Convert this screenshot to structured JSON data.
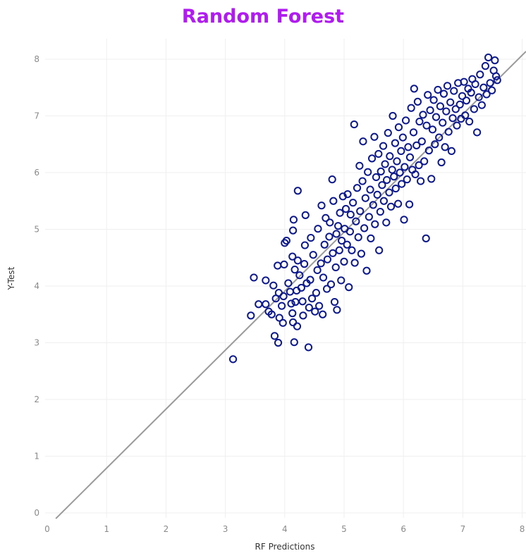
{
  "colors": {
    "title": "#b01cf0",
    "marker": "#0e1a8c",
    "fit_line": "#9a9a9a",
    "grid": "#efefef"
  },
  "chart_data": {
    "type": "scatter",
    "title": "Random Forest",
    "xlabel": "RF Predictions",
    "ylabel": "Y-Test",
    "xlim": [
      0,
      8
    ],
    "ylim": [
      -0.1,
      8.4
    ],
    "xticks": [
      "0",
      "1",
      "2",
      "3",
      "4",
      "5",
      "6",
      "7",
      "8"
    ],
    "yticks": [
      "0",
      "1",
      "2",
      "3",
      "4",
      "5",
      "6",
      "7",
      "8"
    ],
    "grid": true,
    "marker": "hollow-circle",
    "fit_line": {
      "slope": 1.04,
      "intercept": -0.25
    },
    "points": [
      [
        3.13,
        2.71
      ],
      [
        3.43,
        3.48
      ],
      [
        3.48,
        4.15
      ],
      [
        3.56,
        3.68
      ],
      [
        3.68,
        3.68
      ],
      [
        3.68,
        4.1
      ],
      [
        3.73,
        3.55
      ],
      [
        3.78,
        3.5
      ],
      [
        3.81,
        4.01
      ],
      [
        3.83,
        3.12
      ],
      [
        3.85,
        3.78
      ],
      [
        3.88,
        4.36
      ],
      [
        3.89,
        3.0
      ],
      [
        3.9,
        3.88
      ],
      [
        3.91,
        3.44
      ],
      [
        3.95,
        3.65
      ],
      [
        3.97,
        3.35
      ],
      [
        3.98,
        3.82
      ],
      [
        3.99,
        4.38
      ],
      [
        4.0,
        4.76
      ],
      [
        4.03,
        4.8
      ],
      [
        4.06,
        4.05
      ],
      [
        4.09,
        3.9
      ],
      [
        4.11,
        3.69
      ],
      [
        4.13,
        3.52
      ],
      [
        4.13,
        4.52
      ],
      [
        4.14,
        3.36
      ],
      [
        4.14,
        4.98
      ],
      [
        4.15,
        5.17
      ],
      [
        4.16,
        3.01
      ],
      [
        4.17,
        4.29
      ],
      [
        4.18,
        3.72
      ],
      [
        4.2,
        3.92
      ],
      [
        4.21,
        3.29
      ],
      [
        4.22,
        4.45
      ],
      [
        4.22,
        5.68
      ],
      [
        4.25,
        4.19
      ],
      [
        4.28,
        3.97
      ],
      [
        4.3,
        3.73
      ],
      [
        4.31,
        3.48
      ],
      [
        4.33,
        4.39
      ],
      [
        4.34,
        4.72
      ],
      [
        4.35,
        5.25
      ],
      [
        4.37,
        4.05
      ],
      [
        4.4,
        2.92
      ],
      [
        4.41,
        3.62
      ],
      [
        4.43,
        4.11
      ],
      [
        4.44,
        4.85
      ],
      [
        4.46,
        3.78
      ],
      [
        4.48,
        4.55
      ],
      [
        4.51,
        3.55
      ],
      [
        4.53,
        3.88
      ],
      [
        4.55,
        4.28
      ],
      [
        4.56,
        5.01
      ],
      [
        4.58,
        3.65
      ],
      [
        4.61,
        4.4
      ],
      [
        4.62,
        5.42
      ],
      [
        4.64,
        3.5
      ],
      [
        4.65,
        4.15
      ],
      [
        4.67,
        4.73
      ],
      [
        4.69,
        5.2
      ],
      [
        4.71,
        3.95
      ],
      [
        4.72,
        4.47
      ],
      [
        4.75,
        4.87
      ],
      [
        4.76,
        5.12
      ],
      [
        4.78,
        4.03
      ],
      [
        4.8,
        5.88
      ],
      [
        4.81,
        4.58
      ],
      [
        4.82,
        5.5
      ],
      [
        4.84,
        3.72
      ],
      [
        4.86,
        4.33
      ],
      [
        4.87,
        4.92
      ],
      [
        4.88,
        3.58
      ],
      [
        4.9,
        5.06
      ],
      [
        4.92,
        4.63
      ],
      [
        4.93,
        5.29
      ],
      [
        4.95,
        4.1
      ],
      [
        4.96,
        4.8
      ],
      [
        4.98,
        5.58
      ],
      [
        5.0,
        4.43
      ],
      [
        5.01,
        5.01
      ],
      [
        5.03,
        5.36
      ],
      [
        5.05,
        4.73
      ],
      [
        5.06,
        5.62
      ],
      [
        5.08,
        3.98
      ],
      [
        5.1,
        4.96
      ],
      [
        5.11,
        5.26
      ],
      [
        5.13,
        4.63
      ],
      [
        5.15,
        5.47
      ],
      [
        5.17,
        6.85
      ],
      [
        5.18,
        4.41
      ],
      [
        5.2,
        5.14
      ],
      [
        5.22,
        5.73
      ],
      [
        5.24,
        4.86
      ],
      [
        5.26,
        6.12
      ],
      [
        5.27,
        5.32
      ],
      [
        5.29,
        4.57
      ],
      [
        5.31,
        5.85
      ],
      [
        5.32,
        6.55
      ],
      [
        5.34,
        5.02
      ],
      [
        5.36,
        5.55
      ],
      [
        5.38,
        4.27
      ],
      [
        5.4,
        6.01
      ],
      [
        5.42,
        5.22
      ],
      [
        5.44,
        5.7
      ],
      [
        5.45,
        4.84
      ],
      [
        5.47,
        6.25
      ],
      [
        5.49,
        5.43
      ],
      [
        5.51,
        6.63
      ],
      [
        5.52,
        5.09
      ],
      [
        5.54,
        5.92
      ],
      [
        5.56,
        5.61
      ],
      [
        5.58,
        6.33
      ],
      [
        5.59,
        4.63
      ],
      [
        5.61,
        5.31
      ],
      [
        5.62,
        6.02
      ],
      [
        5.64,
        5.78
      ],
      [
        5.66,
        6.47
      ],
      [
        5.67,
        5.5
      ],
      [
        5.69,
        6.15
      ],
      [
        5.71,
        5.12
      ],
      [
        5.72,
        5.87
      ],
      [
        5.74,
        6.7
      ],
      [
        5.76,
        5.65
      ],
      [
        5.77,
        6.29
      ],
      [
        5.79,
        5.4
      ],
      [
        5.81,
        6.05
      ],
      [
        5.82,
        7.0
      ],
      [
        5.84,
        5.93
      ],
      [
        5.86,
        6.52
      ],
      [
        5.87,
        5.72
      ],
      [
        5.89,
        6.2
      ],
      [
        5.91,
        5.45
      ],
      [
        5.92,
        6.8
      ],
      [
        5.94,
        6.0
      ],
      [
        5.96,
        6.38
      ],
      [
        5.97,
        5.8
      ],
      [
        5.99,
        6.62
      ],
      [
        6.01,
        5.17
      ],
      [
        6.02,
        6.1
      ],
      [
        6.04,
        6.92
      ],
      [
        6.06,
        5.88
      ],
      [
        6.08,
        6.45
      ],
      [
        6.1,
        5.44
      ],
      [
        6.11,
        6.27
      ],
      [
        6.13,
        7.14
      ],
      [
        6.15,
        6.05
      ],
      [
        6.17,
        6.71
      ],
      [
        6.18,
        7.48
      ],
      [
        6.2,
        5.97
      ],
      [
        6.22,
        6.48
      ],
      [
        6.24,
        7.25
      ],
      [
        6.26,
        6.13
      ],
      [
        6.27,
        6.9
      ],
      [
        6.29,
        5.85
      ],
      [
        6.31,
        6.55
      ],
      [
        6.33,
        7.02
      ],
      [
        6.35,
        6.2
      ],
      [
        6.38,
        4.84
      ],
      [
        6.39,
        6.83
      ],
      [
        6.41,
        7.37
      ],
      [
        6.43,
        6.39
      ],
      [
        6.45,
        7.1
      ],
      [
        6.47,
        5.89
      ],
      [
        6.49,
        6.76
      ],
      [
        6.51,
        7.28
      ],
      [
        6.53,
        6.5
      ],
      [
        6.55,
        6.98
      ],
      [
        6.58,
        7.46
      ],
      [
        6.6,
        6.62
      ],
      [
        6.62,
        7.17
      ],
      [
        6.64,
        6.18
      ],
      [
        6.66,
        6.88
      ],
      [
        6.68,
        7.39
      ],
      [
        6.7,
        6.45
      ],
      [
        6.72,
        7.08
      ],
      [
        6.74,
        7.53
      ],
      [
        6.76,
        6.72
      ],
      [
        6.79,
        7.24
      ],
      [
        6.81,
        6.38
      ],
      [
        6.83,
        6.96
      ],
      [
        6.85,
        7.44
      ],
      [
        6.88,
        7.12
      ],
      [
        6.9,
        6.83
      ],
      [
        6.92,
        7.58
      ],
      [
        6.95,
        7.2
      ],
      [
        6.97,
        6.95
      ],
      [
        6.99,
        7.35
      ],
      [
        7.02,
        7.6
      ],
      [
        7.04,
        7.01
      ],
      [
        7.06,
        7.27
      ],
      [
        7.09,
        7.48
      ],
      [
        7.11,
        6.9
      ],
      [
        7.14,
        7.41
      ],
      [
        7.16,
        7.65
      ],
      [
        7.19,
        7.12
      ],
      [
        7.21,
        7.56
      ],
      [
        7.24,
        6.71
      ],
      [
        7.27,
        7.33
      ],
      [
        7.29,
        7.73
      ],
      [
        7.32,
        7.19
      ],
      [
        7.35,
        7.5
      ],
      [
        7.38,
        7.88
      ],
      [
        7.4,
        7.38
      ],
      [
        7.43,
        8.03
      ],
      [
        7.46,
        7.58
      ],
      [
        7.49,
        7.45
      ],
      [
        7.52,
        7.8
      ],
      [
        7.54,
        7.98
      ],
      [
        7.56,
        7.7
      ],
      [
        7.58,
        7.63
      ]
    ]
  }
}
